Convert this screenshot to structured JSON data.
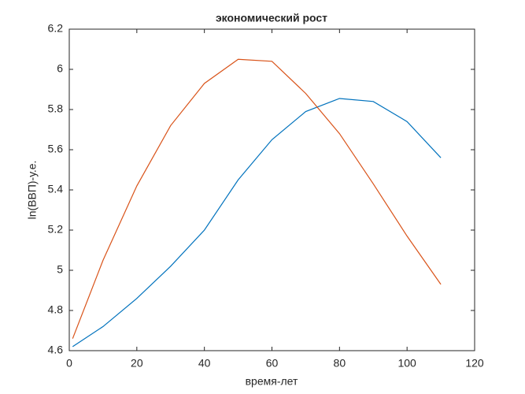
{
  "chart_data": {
    "type": "line",
    "title": "экономический рост",
    "x_label": "время-лет",
    "y_label": "ln(ВВП)-у.е.",
    "x": [
      1,
      10,
      20,
      30,
      40,
      50,
      60,
      70,
      80,
      90,
      100,
      110
    ],
    "series": [
      {
        "color": "#0072bd",
        "values": [
          4.62,
          4.72,
          4.86,
          5.02,
          5.2,
          5.45,
          5.65,
          5.79,
          5.855,
          5.84,
          5.74,
          5.56
        ]
      },
      {
        "color": "#d95319",
        "values": [
          4.66,
          5.05,
          5.42,
          5.72,
          5.93,
          6.05,
          6.04,
          5.88,
          5.68,
          5.43,
          5.17,
          4.93
        ]
      }
    ],
    "xlim": [
      0,
      120
    ],
    "xticks": [
      0,
      20,
      40,
      60,
      80,
      100,
      120
    ],
    "ylim": [
      4.6,
      6.2
    ],
    "yticks": [
      4.6,
      4.8,
      5,
      5.2,
      5.4,
      5.6,
      5.8,
      6,
      6.2
    ],
    "grid": false
  }
}
